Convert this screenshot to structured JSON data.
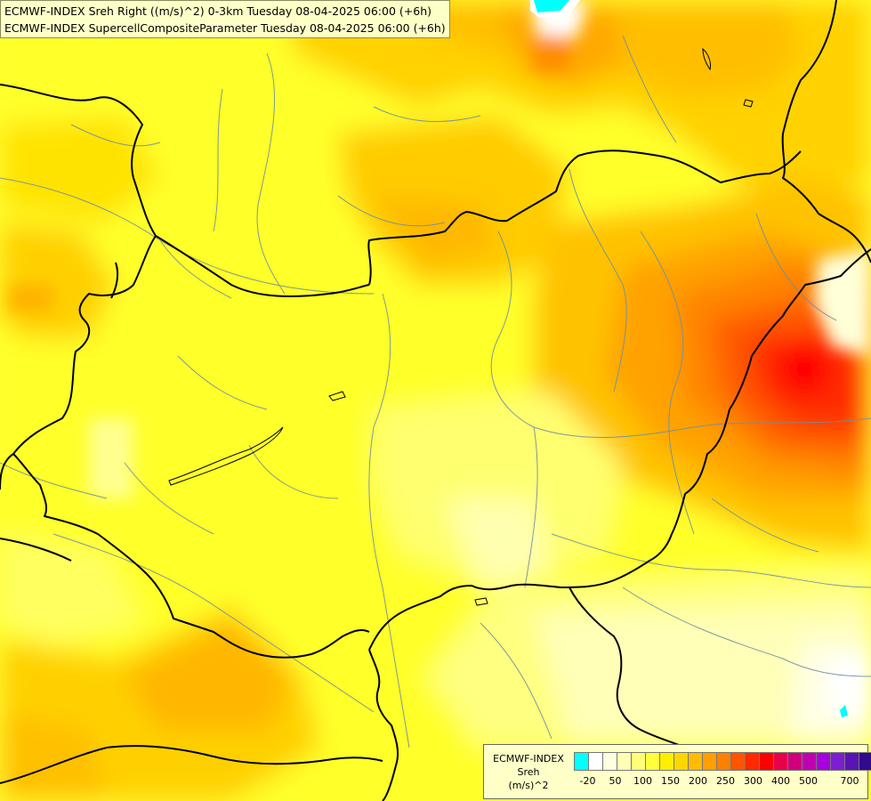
{
  "title": {
    "line1": "ECMWF-INDEX Sreh Right ((m/s)^2) 0-3km Tuesday 08-04-2025 06:00 (+6h)",
    "line2": "ECMWF-INDEX SupercellCompositeParameter Tuesday 08-04-2025 06:00 (+6h)"
  },
  "legend": {
    "title_line1": "ECMWF-INDEX",
    "title_line2": "Sreh",
    "title_line3": "(m/s)^2",
    "swatches": [
      "#00ffff",
      "#ffffff",
      "#ffffe0",
      "#ffffb4",
      "#ffff78",
      "#ffff3c",
      "#ffee00",
      "#ffd700",
      "#ffbb00",
      "#ff9f00",
      "#ff7f00",
      "#ff5500",
      "#ff2a00",
      "#ff0000",
      "#e8004a",
      "#d0007a",
      "#c000b0",
      "#a800e0",
      "#7c1ed2",
      "#5a14b4",
      "#320a8c"
    ],
    "ticks": [
      "-20",
      "50",
      "100",
      "150",
      "200",
      "250",
      "300",
      "400",
      "500",
      "700"
    ]
  },
  "colors": {
    "background": "#ffff33",
    "border_line": "#000000",
    "river_line": "#6f8fa0"
  }
}
